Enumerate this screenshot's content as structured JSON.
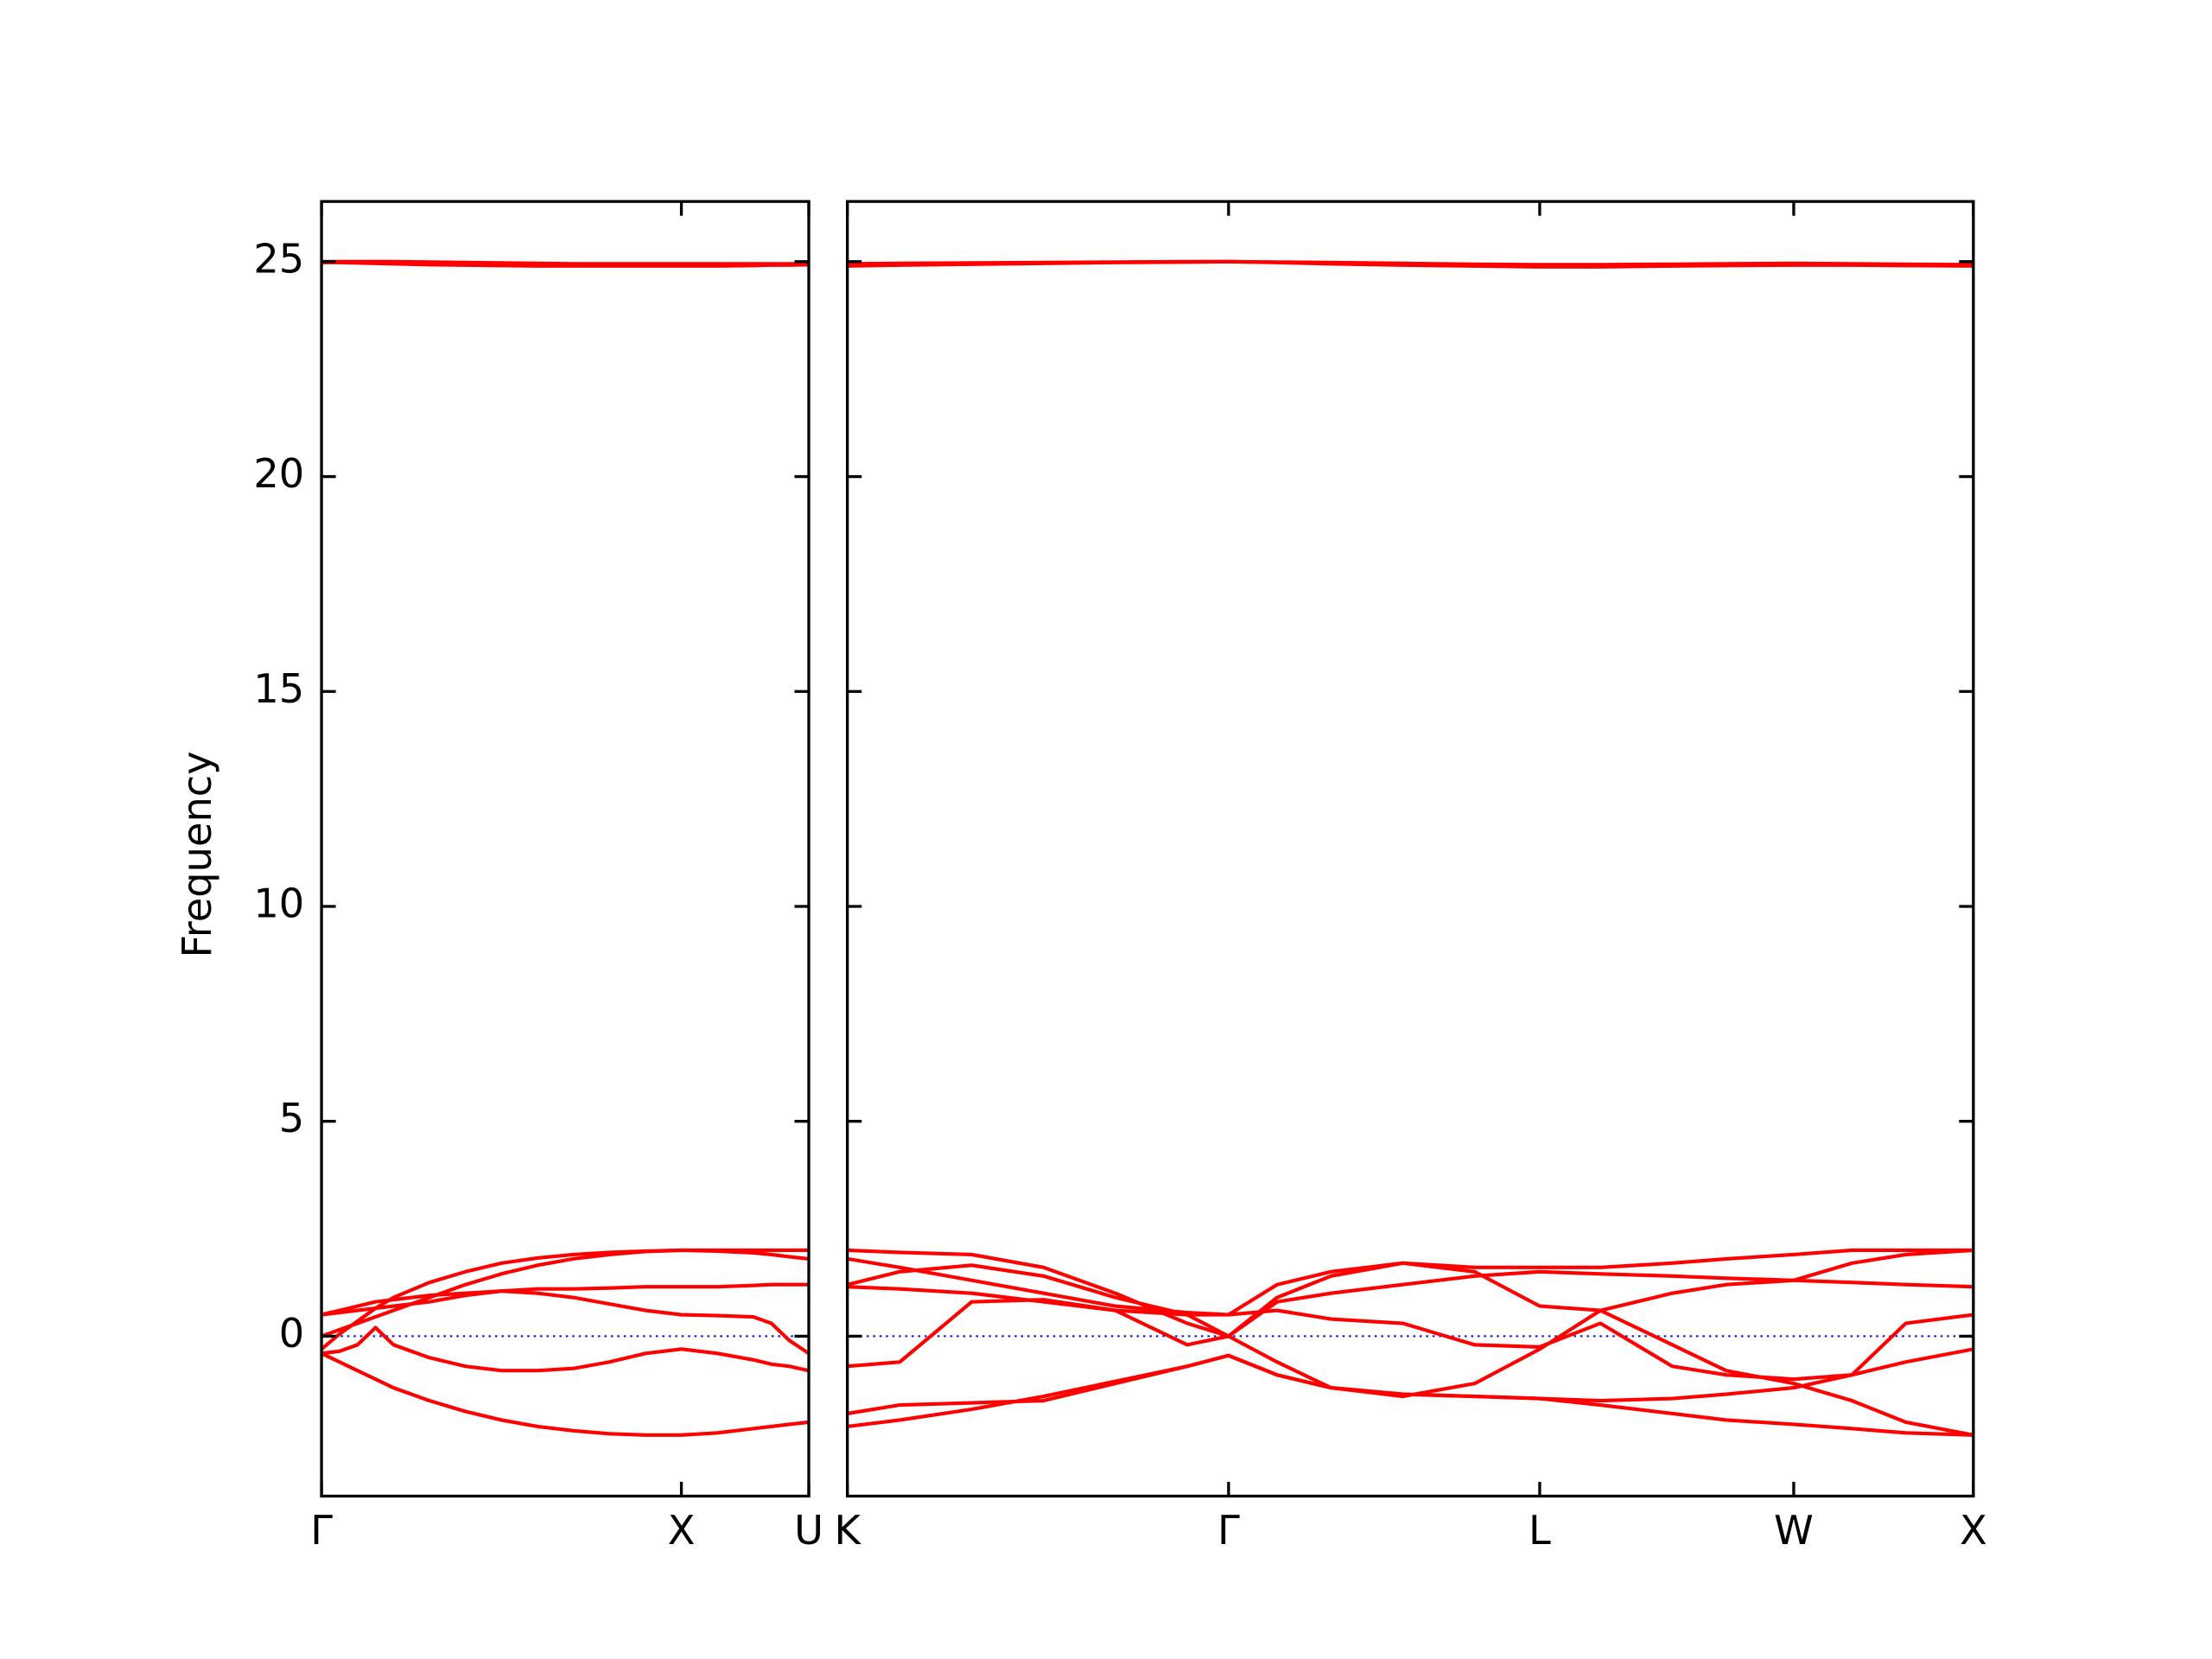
{
  "chart_data": [
    {
      "type": "line",
      "ylabel": "Frequency",
      "show_ytick_labels": true,
      "xlim": [
        0,
        1.354
      ],
      "ylim": [
        -3.72,
        26.4
      ],
      "xticks": [
        {
          "value": 0,
          "label": "Γ"
        },
        {
          "value": 1.0,
          "label": "X"
        },
        {
          "value": 1.354,
          "label": "U"
        }
      ],
      "yticks": [
        0,
        5,
        10,
        15,
        20,
        25
      ],
      "hline": 0,
      "hline_color": "#0000ff",
      "x": [
        0,
        0.05,
        0.1,
        0.15,
        0.2,
        0.3,
        0.4,
        0.5,
        0.6,
        0.7,
        0.8,
        0.9,
        1.0,
        1.1,
        1.2,
        1.25,
        1.3,
        1.354
      ],
      "series": [
        {
          "color": "#ff0000",
          "values": [
            -0.4,
            -0.6,
            -0.8,
            -1.0,
            -1.2,
            -1.5,
            -1.75,
            -1.95,
            -2.1,
            -2.2,
            -2.27,
            -2.3,
            -2.3,
            -2.25,
            -2.15,
            -2.1,
            -2.05,
            -2.0
          ]
        },
        {
          "color": "#ff0000",
          "values": [
            -0.4,
            -0.35,
            -0.2,
            0.2,
            -0.2,
            -0.5,
            -0.7,
            -0.8,
            -0.8,
            -0.75,
            -0.6,
            -0.4,
            -0.3,
            -0.4,
            -0.55,
            -0.65,
            -0.7,
            -0.8
          ]
        },
        {
          "color": "#ff0000",
          "values": [
            0.5,
            0.55,
            0.6,
            0.65,
            0.7,
            0.8,
            0.95,
            1.05,
            1.1,
            1.1,
            1.12,
            1.15,
            1.15,
            1.15,
            1.18,
            1.2,
            1.2,
            1.2
          ]
        },
        {
          "color": "#ff0000",
          "values": [
            0.5,
            0.6,
            0.7,
            0.8,
            0.85,
            0.95,
            1.0,
            1.05,
            1.0,
            0.9,
            0.75,
            0.6,
            0.5,
            0.48,
            0.45,
            0.3,
            -0.1,
            -0.4
          ]
        },
        {
          "color": "#ff0000",
          "values": [
            0,
            0.15,
            0.3,
            0.45,
            0.6,
            0.9,
            1.2,
            1.45,
            1.65,
            1.8,
            1.9,
            1.97,
            2.0,
            1.98,
            1.94,
            1.9,
            1.85,
            1.8
          ]
        },
        {
          "color": "#ff0000",
          "values": [
            -0.3,
            0.05,
            0.35,
            0.65,
            0.9,
            1.25,
            1.5,
            1.7,
            1.82,
            1.9,
            1.95,
            1.98,
            2.0,
            2.0,
            2.0,
            2.0,
            2.0,
            2.0
          ]
        },
        {
          "color": "#ff0000",
          "values": [
            25.0,
            25.0,
            25.0,
            25.0,
            25.0,
            24.99,
            24.98,
            24.97,
            24.96,
            24.95,
            24.95,
            24.95,
            24.95,
            24.95,
            24.95,
            24.95,
            24.95,
            24.95
          ]
        },
        {
          "color": "#ff0000",
          "values": [
            24.98,
            24.98,
            24.97,
            24.96,
            24.95,
            24.93,
            24.92,
            24.91,
            24.9,
            24.9,
            24.9,
            24.9,
            24.9,
            24.9,
            24.91,
            24.92,
            24.92,
            24.93
          ]
        }
      ]
    },
    {
      "type": "line",
      "show_ytick_labels": false,
      "xlim": [
        1.354,
        4.488
      ],
      "ylim": [
        -3.72,
        26.4
      ],
      "xticks": [
        {
          "value": 1.354,
          "label": "K"
        },
        {
          "value": 2.415,
          "label": "Γ"
        },
        {
          "value": 3.281,
          "label": "L"
        },
        {
          "value": 3.988,
          "label": "W"
        },
        {
          "value": 4.488,
          "label": "X"
        }
      ],
      "yticks": [
        0,
        5,
        10,
        15,
        20,
        25
      ],
      "hline": 0,
      "hline_color": "#0000ff",
      "x": [
        1.354,
        1.5,
        1.7,
        1.9,
        2.1,
        2.3,
        2.415,
        2.55,
        2.7,
        2.9,
        3.1,
        3.281,
        3.45,
        3.65,
        3.8,
        3.988,
        4.15,
        4.3,
        4.488
      ],
      "series": [
        {
          "color": "#ff0000",
          "values": [
            -2.1,
            -1.95,
            -1.7,
            -1.4,
            -1.05,
            -0.7,
            -0.45,
            -0.9,
            -1.2,
            -1.35,
            -1.4,
            -1.45,
            -1.6,
            -1.8,
            -1.95,
            -2.05,
            -2.15,
            -2.25,
            -2.3
          ]
        },
        {
          "color": "#ff0000",
          "values": [
            -1.8,
            -1.6,
            -1.55,
            -1.5,
            -1.1,
            -0.7,
            -0.45,
            -0.9,
            -1.2,
            -1.35,
            -1.4,
            -1.45,
            -1.5,
            -1.45,
            -1.35,
            -1.2,
            -0.9,
            -0.6,
            -0.3
          ]
        },
        {
          "color": "#ff0000",
          "values": [
            -0.7,
            -0.6,
            0.8,
            0.85,
            0.6,
            -0.2,
            0.0,
            -0.6,
            -1.2,
            -1.4,
            -1.1,
            -0.3,
            0.6,
            1.0,
            1.2,
            1.3,
            1.7,
            1.9,
            2.0
          ]
        },
        {
          "color": "#ff0000",
          "values": [
            1.15,
            1.1,
            1.0,
            0.8,
            0.6,
            0.5,
            0.5,
            0.6,
            0.4,
            0.3,
            -0.2,
            -0.25,
            0.3,
            -0.7,
            -0.9,
            -1.0,
            -0.9,
            0.3,
            0.5
          ]
        },
        {
          "color": "#ff0000",
          "values": [
            1.2,
            1.5,
            1.65,
            1.4,
            0.9,
            0.5,
            0.0,
            0.8,
            1.0,
            1.2,
            1.4,
            1.5,
            1.45,
            1.4,
            1.35,
            1.3,
            1.25,
            1.2,
            1.15
          ]
        },
        {
          "color": "#ff0000",
          "values": [
            1.8,
            1.6,
            1.3,
            1.0,
            0.7,
            0.55,
            0.5,
            1.2,
            1.5,
            1.7,
            1.6,
            1.6,
            1.6,
            1.7,
            1.8,
            1.9,
            2.0,
            2.0,
            2.0
          ]
        },
        {
          "color": "#ff0000",
          "values": [
            2.0,
            1.95,
            1.9,
            1.6,
            1.0,
            0.3,
            0.0,
            0.9,
            1.4,
            1.7,
            1.5,
            0.7,
            0.6,
            -0.2,
            -0.8,
            -1.1,
            -1.5,
            -2.0,
            -2.3
          ]
        },
        {
          "color": "#ff0000",
          "values": [
            24.95,
            24.96,
            24.97,
            24.98,
            24.99,
            25.0,
            25.0,
            24.99,
            24.98,
            24.96,
            24.94,
            24.93,
            24.93,
            24.94,
            24.95,
            24.96,
            24.95,
            24.94,
            24.93
          ]
        },
        {
          "color": "#ff0000",
          "values": [
            24.9,
            24.92,
            24.94,
            24.96,
            24.98,
            24.99,
            25.0,
            24.98,
            24.95,
            24.92,
            24.9,
            24.88,
            24.88,
            24.9,
            24.91,
            24.92,
            24.92,
            24.91,
            24.9
          ]
        }
      ]
    }
  ]
}
